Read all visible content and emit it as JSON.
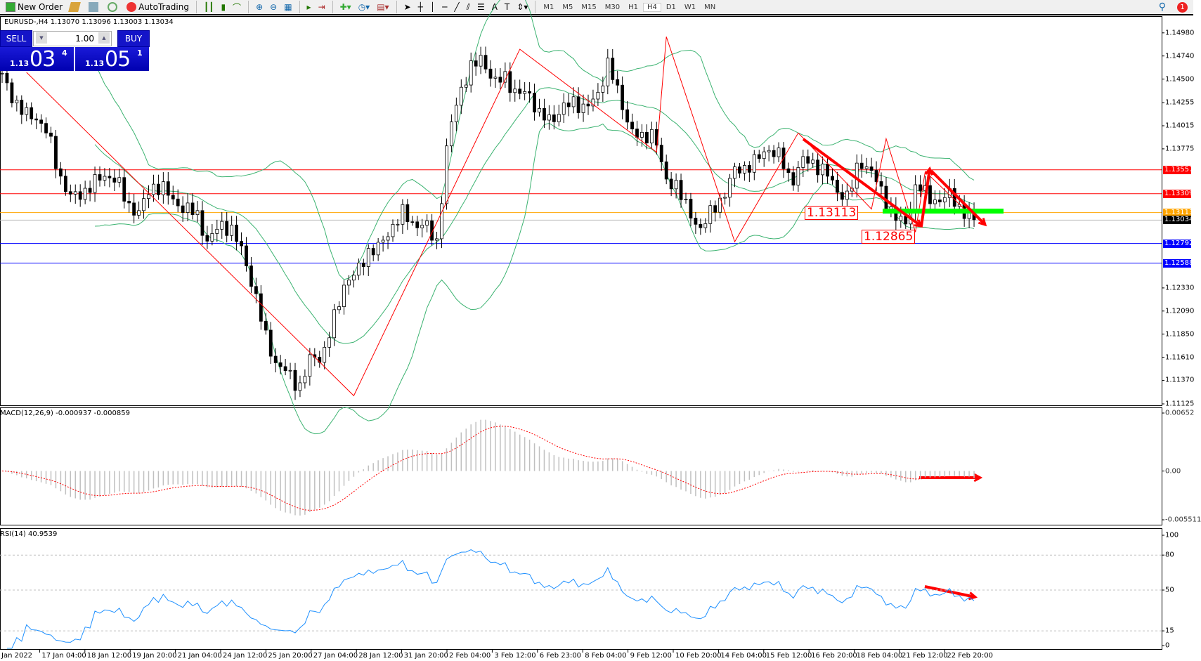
{
  "toolbar": {
    "new_order": "New Order",
    "autotrading": "AutoTrading",
    "timeframes": [
      "M1",
      "M5",
      "M15",
      "M30",
      "H1",
      "H4",
      "D1",
      "W1",
      "MN"
    ],
    "active_timeframe": "H4",
    "notification_count": "1"
  },
  "chart": {
    "info": "EURUSD-,H4  1.13070 1.13096 1.13003 1.13034",
    "symbol": "EURUSD-",
    "timeframe": "H4"
  },
  "quote": {
    "sell_label": "SELL",
    "buy_label": "BUY",
    "lot": "1.00",
    "sell_prefix": "1.13",
    "sell_big": "03",
    "sell_sup": "4",
    "buy_prefix": "1.13",
    "buy_big": "05",
    "buy_sup": "1"
  },
  "price_axis": [
    "1.14980",
    "1.14740",
    "1.14500",
    "1.14255",
    "1.14015",
    "1.13775",
    "1.12330",
    "1.12090",
    "1.11850",
    "1.11610",
    "1.11370",
    "1.11125"
  ],
  "levels": [
    {
      "price": "1.13557",
      "color": "#ff0000"
    },
    {
      "price": "1.13309",
      "color": "#ff0000"
    },
    {
      "price": "1.13113",
      "color": "#ffa500"
    },
    {
      "price": "1.13034",
      "color": "#000000"
    },
    {
      "price": "1.12792",
      "color": "#0000ff"
    },
    {
      "price": "1.12588",
      "color": "#0000ff"
    }
  ],
  "annotations": {
    "label1": "1.13113",
    "label2": "1.12865",
    "zone_color": "#00ff00"
  },
  "macd": {
    "label": "MACD(12,26,9) -0.000937 -0.000859",
    "axis": [
      "0.00652",
      "0.00",
      "-0.005511"
    ]
  },
  "rsi": {
    "label": "RSI(14) 40.9539",
    "axis": [
      "100",
      "80",
      "50",
      "15",
      "0"
    ]
  },
  "time_axis": [
    "Jan 2022",
    "17 Jan 04:00",
    "18 Jan 12:00",
    "19 Jan 20:00",
    "21 Jan 04:00",
    "24 Jan 12:00",
    "25 Jan 20:00",
    "27 Jan 04:00",
    "28 Jan 12:00",
    "31 Jan 20:00",
    "2 Feb 04:00",
    "3 Feb 12:00",
    "6 Feb 23:00",
    "8 Feb 04:00",
    "9 Feb 12:00",
    "10 Feb 20:00",
    "14 Feb 04:00",
    "15 Feb 12:00",
    "16 Feb 20:00",
    "18 Feb 04:00",
    "21 Feb 12:00",
    "22 Feb 20:00"
  ],
  "chart_data": {
    "type": "candlestick",
    "price_range": [
      1.11125,
      1.1498
    ],
    "closes": [
      1.1453,
      1.1429,
      1.1413,
      1.141,
      1.1394,
      1.135,
      1.1327,
      1.1331,
      1.1342,
      1.135,
      1.1346,
      1.1319,
      1.1311,
      1.1338,
      1.1338,
      1.1323,
      1.1315,
      1.1311,
      1.1279,
      1.1299,
      1.1295,
      1.1271,
      1.1232,
      1.1184,
      1.1153,
      1.1145,
      1.1129,
      1.1161,
      1.1161,
      1.12,
      1.124,
      1.1248,
      1.1271,
      1.1275,
      1.1295,
      1.1311,
      1.1299,
      1.1299,
      1.1279,
      1.139,
      1.1437,
      1.1461,
      1.1473,
      1.1445,
      1.1453,
      1.1433,
      1.1437,
      1.1413,
      1.1406,
      1.1421,
      1.1425,
      1.1421,
      1.1429,
      1.1469,
      1.1429,
      1.1398,
      1.1386,
      1.1398,
      1.1342,
      1.1342,
      1.1311,
      1.1295,
      1.1311,
      1.1327,
      1.1354,
      1.1358,
      1.1366,
      1.1378,
      1.137,
      1.1342,
      1.1366,
      1.1362,
      1.1354,
      1.1334,
      1.1327,
      1.1366,
      1.1354,
      1.1331,
      1.1307,
      1.1299,
      1.1342,
      1.1327,
      1.1323,
      1.1331,
      1.1311,
      1.1303
    ],
    "zigzag": [
      [
        5,
        1.1457
      ],
      [
        72,
        1.1121
      ],
      [
        106,
        1.1481
      ],
      [
        134,
        1.1374
      ],
      [
        136,
        1.1494
      ],
      [
        150,
        1.1281
      ],
      [
        163,
        1.1394
      ],
      [
        178,
        1.1315
      ],
      [
        181,
        1.1388
      ],
      [
        187,
        1.1291
      ],
      [
        189,
        1.1354
      ],
      [
        197,
        1.1315
      ]
    ],
    "indicators": [
      "Bollinger Bands",
      "ZigZag",
      "MACD(12,26,9)",
      "RSI(14)"
    ],
    "rsi_levels": [
      80,
      50,
      15
    ],
    "macd_range": [
      -0.005511,
      0.00652
    ]
  }
}
